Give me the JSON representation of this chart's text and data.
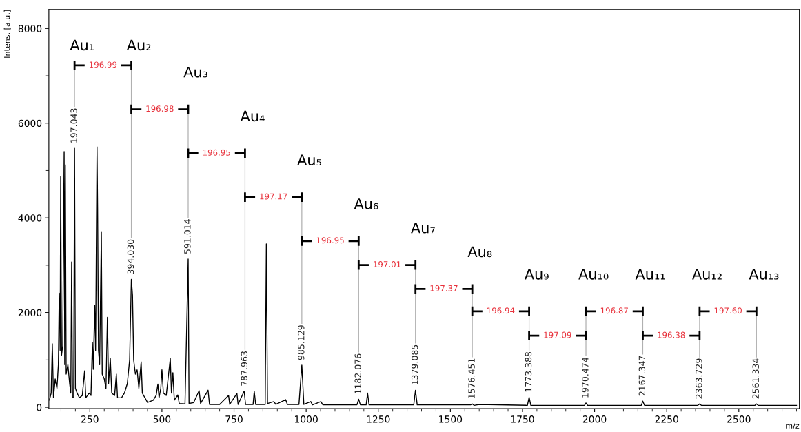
{
  "chart_data": {
    "type": "line",
    "xlabel": "m/z",
    "ylabel": "Intens. [a.u.]",
    "xlim": [
      108,
      2710
    ],
    "ylim": [
      -30,
      8400
    ],
    "xticks": [
      250,
      500,
      750,
      1000,
      1250,
      1500,
      1750,
      2000,
      2250,
      2500
    ],
    "yticks": [
      0,
      2000,
      4000,
      6000,
      8000
    ],
    "grid": false,
    "legend": false,
    "marker": "none",
    "line_style": "solid",
    "series": [
      {
        "color": "#000000",
        "x": [
          110,
          116,
          120,
          124,
          130,
          136,
          141,
          144,
          147,
          149,
          152,
          156,
          161,
          163,
          165,
          168,
          174,
          180,
          184,
          187,
          190,
          194,
          197,
          200,
          206,
          214,
          224,
          232,
          236,
          248,
          254,
          259,
          262,
          267,
          270,
          275,
          277,
          280,
          284,
          290,
          293,
          300,
          306,
          311,
          315,
          321,
          326,
          336,
          342,
          346,
          360,
          370,
          380,
          388,
          394,
          398,
          402,
          408,
          414,
          420,
          428,
          432,
          450,
          470,
          480,
          486,
          490,
          496,
          500,
          505,
          515,
          529,
          533,
          538,
          543,
          555,
          560,
          580,
          591,
          594,
          610,
          629,
          634,
          660,
          665,
          700,
          731,
          735,
          760,
          764,
          785,
          790,
          816,
          820,
          825,
          858,
          862,
          866,
          888,
          895,
          929,
          935,
          975,
          985,
          992,
          1016,
          1022,
          1051,
          1058,
          1176,
          1182,
          1188,
          1208,
          1213,
          1218,
          1373,
          1379,
          1385,
          1570,
          1576,
          1582,
          1600,
          1767,
          1773,
          1779,
          1965,
          1970,
          1976,
          2162,
          2167,
          2173,
          2358,
          2364,
          2370,
          2556,
          2561,
          2567,
          2700
        ],
        "values": [
          150,
          300,
          1340,
          200,
          600,
          400,
          900,
          2410,
          1200,
          4870,
          1100,
          1300,
          5400,
          900,
          5120,
          700,
          900,
          500,
          300,
          3070,
          200,
          200,
          5470,
          400,
          300,
          200,
          250,
          770,
          200,
          300,
          250,
          1370,
          800,
          2150,
          1200,
          5500,
          4200,
          1200,
          900,
          3710,
          700,
          600,
          400,
          1900,
          500,
          1030,
          300,
          250,
          700,
          200,
          200,
          300,
          500,
          1000,
          2700,
          2370,
          1000,
          700,
          790,
          400,
          960,
          300,
          100,
          150,
          250,
          490,
          200,
          400,
          790,
          300,
          250,
          1030,
          300,
          730,
          150,
          260,
          80,
          70,
          3130,
          80,
          100,
          350,
          80,
          360,
          60,
          60,
          250,
          60,
          290,
          60,
          340,
          60,
          60,
          340,
          60,
          60,
          3450,
          80,
          120,
          60,
          160,
          60,
          60,
          890,
          60,
          120,
          50,
          120,
          50,
          50,
          170,
          50,
          50,
          300,
          50,
          50,
          360,
          50,
          50,
          70,
          40,
          60,
          40,
          210,
          40,
          40,
          90,
          40,
          40,
          130,
          40,
          40,
          70,
          40,
          40,
          70,
          40,
          40
        ]
      }
    ],
    "annotations": [
      {
        "text": "197.043",
        "x": 197,
        "y": 5470
      },
      {
        "text": "394.030",
        "x": 394,
        "y": 2700
      },
      {
        "text": "591.014",
        "x": 591,
        "y": 3130
      },
      {
        "text": "787.963",
        "x": 788,
        "y": 340
      },
      {
        "text": "985.129",
        "x": 985,
        "y": 890
      },
      {
        "text": "1182.076",
        "x": 1182,
        "y": 170
      },
      {
        "text": "1379.085",
        "x": 1379,
        "y": 360
      },
      {
        "text": "1576.451",
        "x": 1576,
        "y": 70
      },
      {
        "text": "1773.388",
        "x": 1773,
        "y": 210
      },
      {
        "text": "1970.474",
        "x": 1970,
        "y": 90
      },
      {
        "text": "2167.347",
        "x": 2167,
        "y": 130
      },
      {
        "text": "2363.729",
        "x": 2364,
        "y": 70
      },
      {
        "text": "2561.334",
        "x": 2561,
        "y": 70
      },
      "196.99",
      "196.98",
      "196.95",
      "197.17",
      "196.95",
      "197.01",
      "197.37",
      "196.94",
      "197.09",
      "196.87",
      "196.38",
      "197.60",
      "Au₁",
      "Au₂",
      "Au₃",
      "Au₄",
      "Au₅",
      "Au₆",
      "Au₇",
      "Au₈",
      "Au₉",
      "Au₁₀",
      "Au₁₁",
      "Au₁₂",
      "Au₁₃"
    ]
  }
}
